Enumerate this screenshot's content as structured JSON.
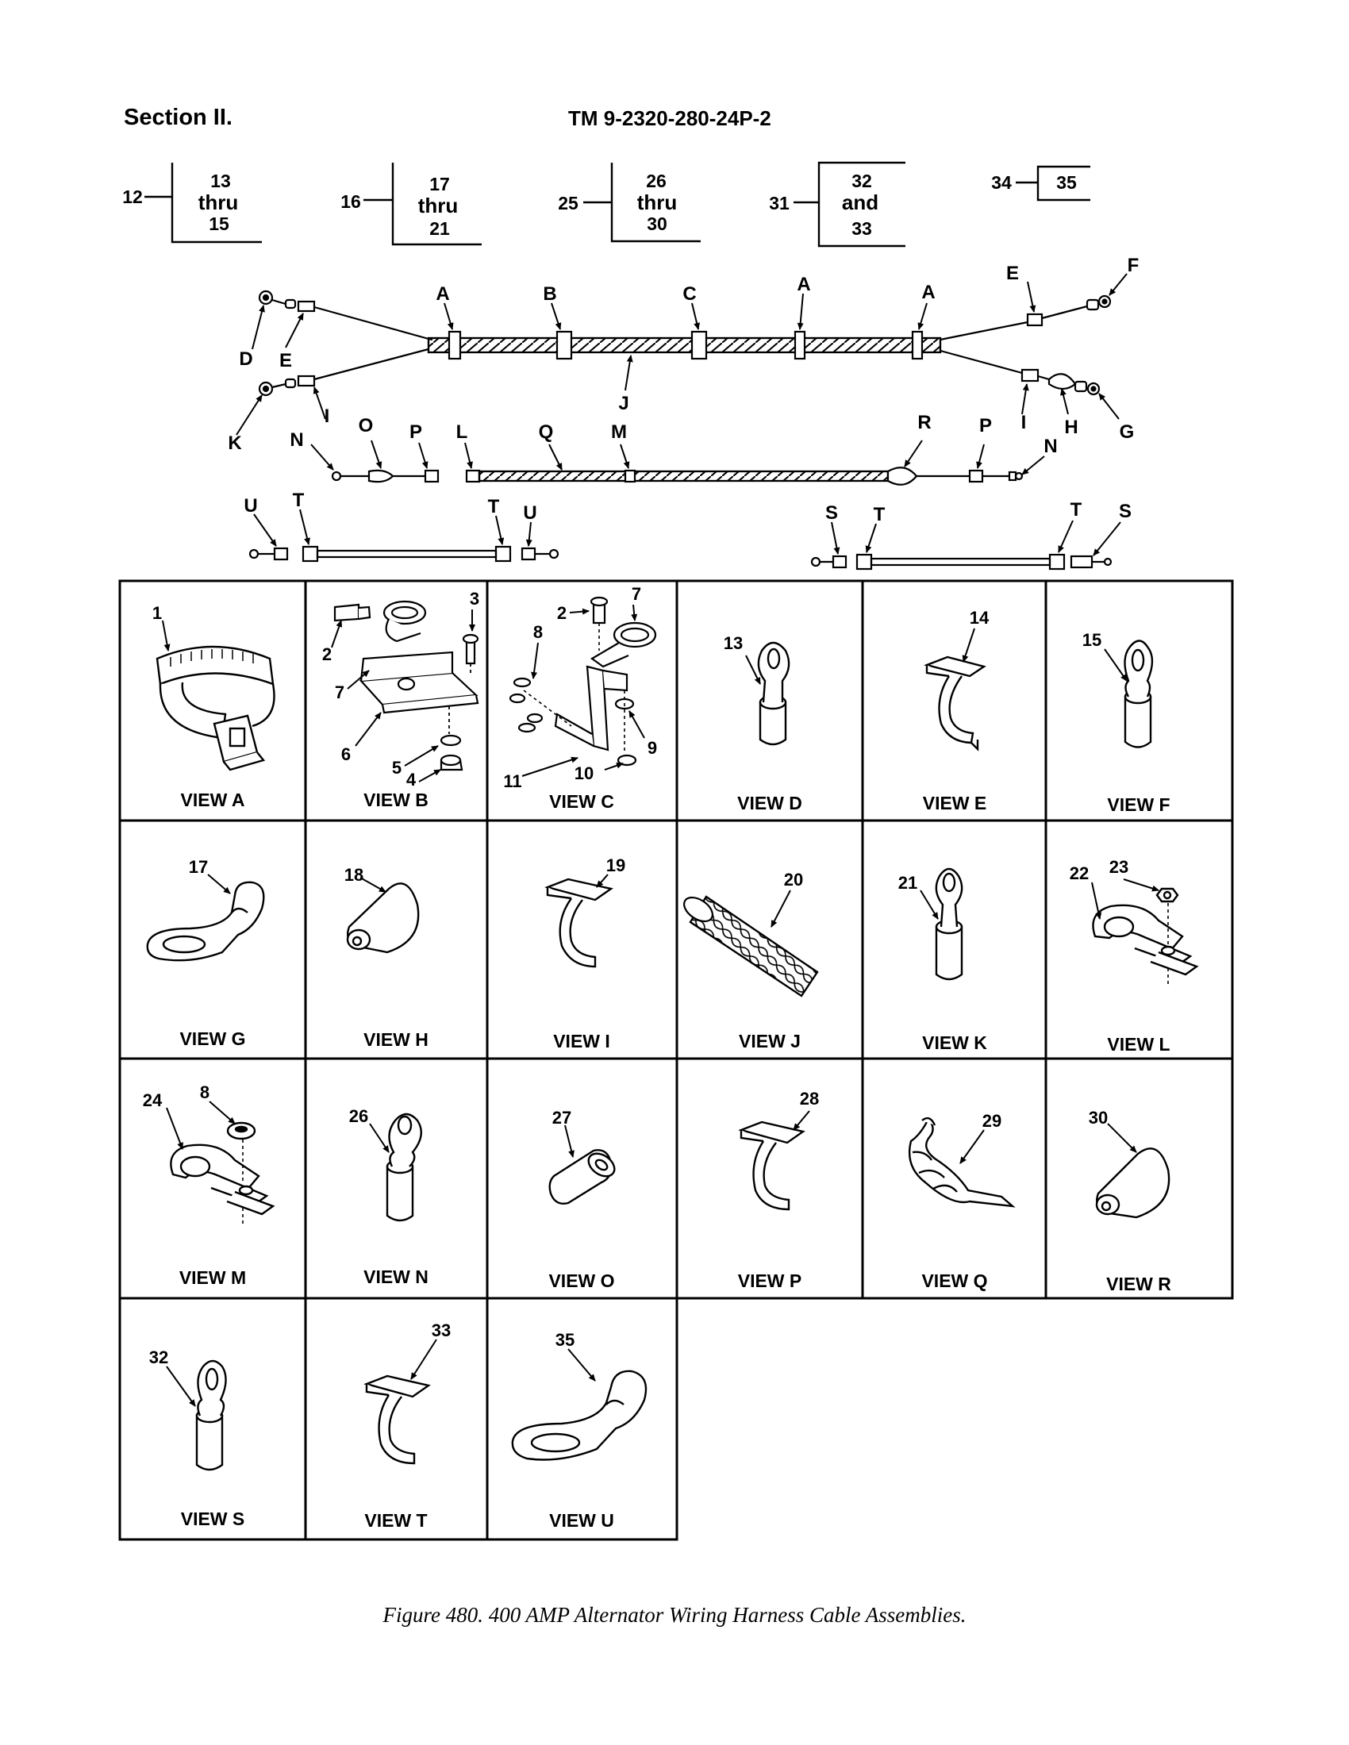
{
  "header": {
    "section": "Section II.",
    "tm_number": "TM 9-2320-280-24P-2"
  },
  "groups": [
    {
      "item": "12",
      "line1": "13",
      "line2": "thru",
      "line3": "15"
    },
    {
      "item": "16",
      "line1": "17",
      "line2": "thru",
      "line3": "21"
    },
    {
      "item": "25",
      "line1": "26",
      "line2": "thru",
      "line3": "30"
    },
    {
      "item": "31",
      "line1": "32",
      "line2": "and",
      "line3": "33"
    },
    {
      "item": "34",
      "line1": "35"
    }
  ],
  "harness_labels": {
    "top": [
      "A",
      "B",
      "C",
      "A",
      "A",
      "D",
      "E",
      "E",
      "F",
      "J",
      "K",
      "I",
      "I",
      "H",
      "G"
    ],
    "middle": [
      "O",
      "P",
      "L",
      "Q",
      "M",
      "R",
      "P",
      "N",
      "N"
    ],
    "bottom_left": [
      "U",
      "T",
      "T",
      "U"
    ],
    "bottom_right": [
      "S",
      "T",
      "T",
      "S"
    ]
  },
  "views": [
    {
      "label": "VIEW A",
      "callouts": [
        "1"
      ]
    },
    {
      "label": "VIEW B",
      "callouts": [
        "2",
        "3",
        "7",
        "6",
        "5",
        "4"
      ]
    },
    {
      "label": "VIEW C",
      "callouts": [
        "2",
        "7",
        "8",
        "9",
        "10",
        "11"
      ]
    },
    {
      "label": "VIEW D",
      "callouts": [
        "13"
      ]
    },
    {
      "label": "VIEW E",
      "callouts": [
        "14"
      ]
    },
    {
      "label": "VIEW F",
      "callouts": [
        "15"
      ]
    },
    {
      "label": "VIEW G",
      "callouts": [
        "17"
      ]
    },
    {
      "label": "VIEW H",
      "callouts": [
        "18"
      ]
    },
    {
      "label": "VIEW I",
      "callouts": [
        "19"
      ]
    },
    {
      "label": "VIEW J",
      "callouts": [
        "20"
      ]
    },
    {
      "label": "VIEW K",
      "callouts": [
        "21"
      ]
    },
    {
      "label": "VIEW L",
      "callouts": [
        "23",
        "22"
      ]
    },
    {
      "label": "VIEW M",
      "callouts": [
        "24",
        "8"
      ]
    },
    {
      "label": "VIEW N",
      "callouts": [
        "26"
      ]
    },
    {
      "label": "VIEW O",
      "callouts": [
        "27"
      ]
    },
    {
      "label": "VIEW P",
      "callouts": [
        "28"
      ]
    },
    {
      "label": "VIEW Q",
      "callouts": [
        "29"
      ]
    },
    {
      "label": "VIEW R",
      "callouts": [
        "30"
      ]
    },
    {
      "label": "VIEW S",
      "callouts": [
        "32"
      ]
    },
    {
      "label": "VIEW T",
      "callouts": [
        "33"
      ]
    },
    {
      "label": "VIEW U",
      "callouts": [
        "35"
      ]
    }
  ],
  "caption": "Figure 480.  400 AMP Alternator Wiring Harness Cable Assemblies."
}
